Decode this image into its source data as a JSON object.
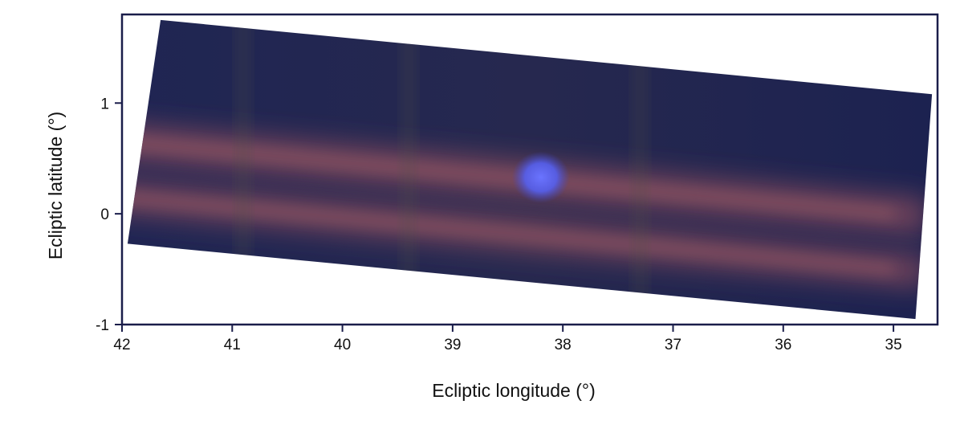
{
  "chart_data": {
    "type": "heatmap",
    "title": "",
    "xlabel": "Ecliptic longitude (°)",
    "ylabel": "Ecliptic latitude (°)",
    "xlim": [
      42,
      34.6
    ],
    "ylim": [
      -1,
      1.8
    ],
    "x_ticks": [
      42,
      41,
      40,
      39,
      38,
      37,
      36,
      35
    ],
    "x_tick_labels": [
      "42",
      "41",
      "40",
      "39",
      "38",
      "37",
      "36",
      "35"
    ],
    "y_ticks": [
      1,
      0,
      -1
    ],
    "y_tick_labels": [
      "1",
      "0",
      "-1"
    ],
    "grid": false,
    "legend": "none",
    "image_footprint_corners": [
      {
        "lon": 41.65,
        "lat": 1.75
      },
      {
        "lon": 34.65,
        "lat": 1.08
      },
      {
        "lon": 34.8,
        "lat": -0.95
      },
      {
        "lon": 41.95,
        "lat": -0.27
      }
    ],
    "bright_source": {
      "lon": 38.2,
      "lat": 0.33,
      "color": "#5a66ff"
    },
    "dust_bands_lat_at_lon_42": [
      0.65,
      0.15
    ],
    "dust_bands_lat_at_lon_35": [
      0.0,
      -0.5
    ],
    "colors": {
      "background": "#1e2450",
      "band": "#8a4e5e",
      "source": "#5a66ff",
      "frame": "#1a1d4a"
    }
  }
}
